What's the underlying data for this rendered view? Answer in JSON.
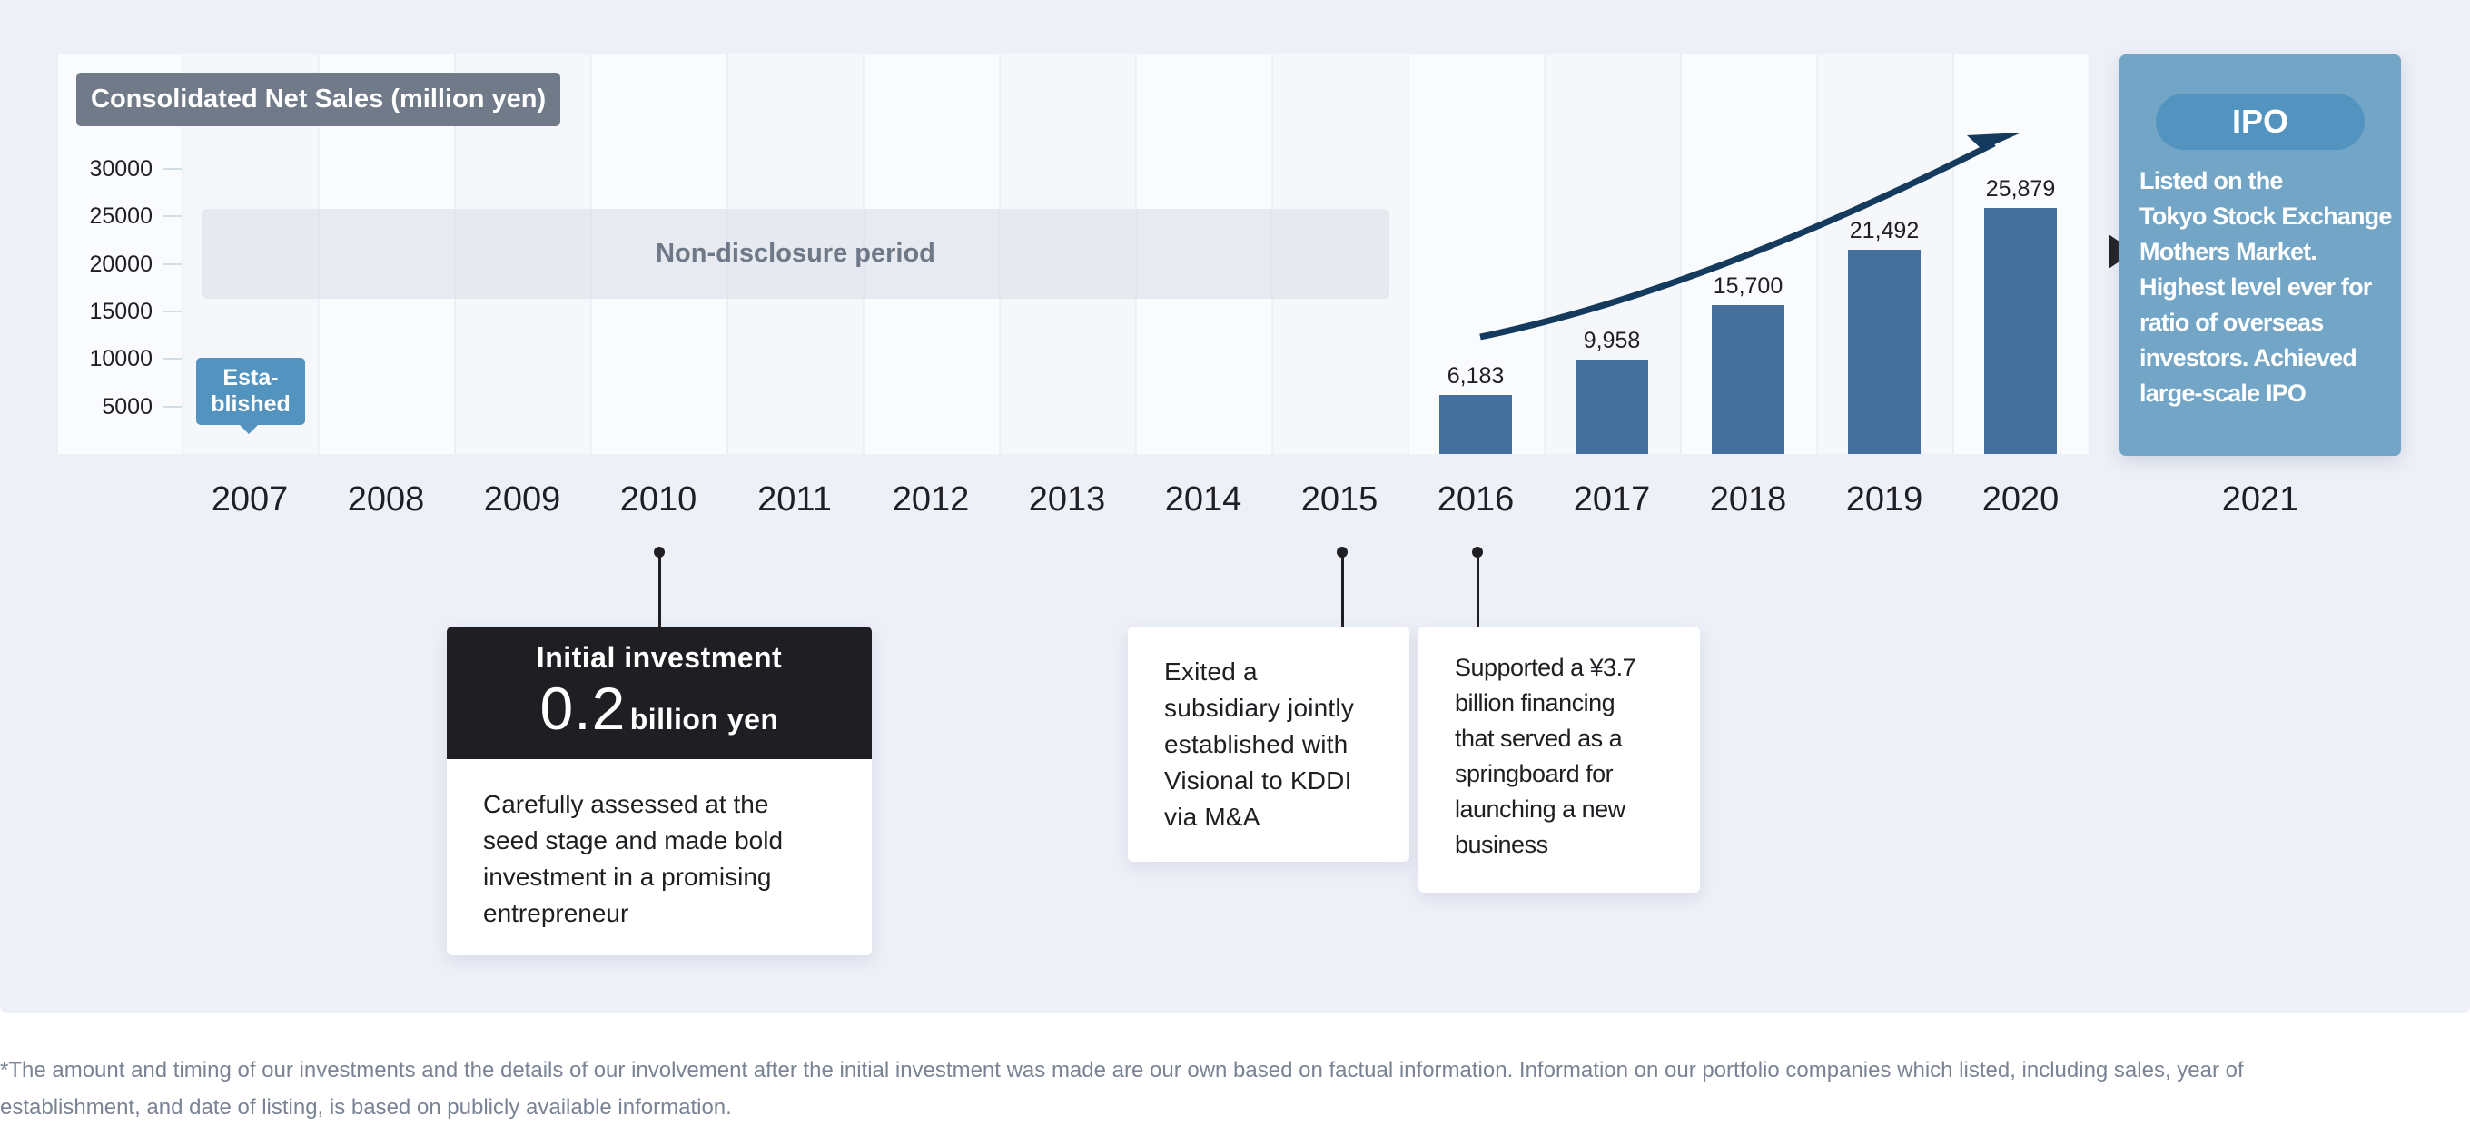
{
  "chart_data": {
    "type": "bar",
    "title": "Consolidated Net Sales (million yen)",
    "xlabel": "",
    "ylabel": "Consolidated Net Sales (million yen)",
    "ylim": [
      0,
      30000
    ],
    "yticks": [
      5000,
      10000,
      15000,
      20000,
      25000,
      30000
    ],
    "ytick_labels": [
      "5000",
      "10000",
      "15000",
      "20000",
      "25000",
      "30000"
    ],
    "categories": [
      "2007",
      "2008",
      "2009",
      "2010",
      "2011",
      "2012",
      "2013",
      "2014",
      "2015",
      "2016",
      "2017",
      "2018",
      "2019",
      "2020"
    ],
    "values": [
      null,
      null,
      null,
      null,
      null,
      null,
      null,
      null,
      null,
      6183,
      9958,
      15700,
      21492,
      25879
    ],
    "value_labels": [
      "",
      "",
      "",
      "",
      "",
      "",
      "",
      "",
      "",
      "6,183",
      "9,958",
      "15,700",
      "21,492",
      "25,879"
    ],
    "grid": false,
    "colors": {
      "bar": "#44709d",
      "trend_arrow": "#143a5e"
    },
    "annotations": [
      {
        "type": "band",
        "text": "Non-disclosure period",
        "from": "2007",
        "to": "2015"
      },
      {
        "type": "badge",
        "text": "Esta-\nblished",
        "at": "2007"
      },
      {
        "type": "trend-arrow",
        "from": "2016",
        "to": "2020"
      }
    ]
  },
  "extra_year": "2021",
  "established": {
    "line1": "Esta-",
    "line2": "blished"
  },
  "ipo": {
    "badge": "IPO",
    "lines": [
      "Listed on the",
      "Tokyo Stock Exchange",
      "Mothers Market.",
      "Highest level ever for",
      "ratio of overseas",
      "investors. Achieved",
      "large-scale IPO"
    ]
  },
  "notes": {
    "initial_investment": {
      "year": "2010",
      "title": "Initial investment",
      "amount": "0.2",
      "unit": "billion yen",
      "lines": [
        "Carefully assessed at the",
        "seed stage and made bold",
        "investment in a promising",
        "entrepreneur"
      ]
    },
    "exit": {
      "year": "2015",
      "lines": [
        "Exited a",
        "subsidiary jointly",
        "established with",
        "Visional to KDDI",
        "via M&A"
      ]
    },
    "financing": {
      "year": "2016",
      "lines": [
        "Supported a ¥3.7",
        "billion financing",
        "that served as a",
        "springboard for",
        "launching a new",
        "business"
      ]
    }
  },
  "footnote": {
    "line1": "*The amount and timing of our investments and the details of our involvement after the initial investment was made are our own based on factual information. Information on our portfolio companies which listed, including sales, year of",
    "line2": "establishment, and date of listing, is based on publicly available information."
  }
}
